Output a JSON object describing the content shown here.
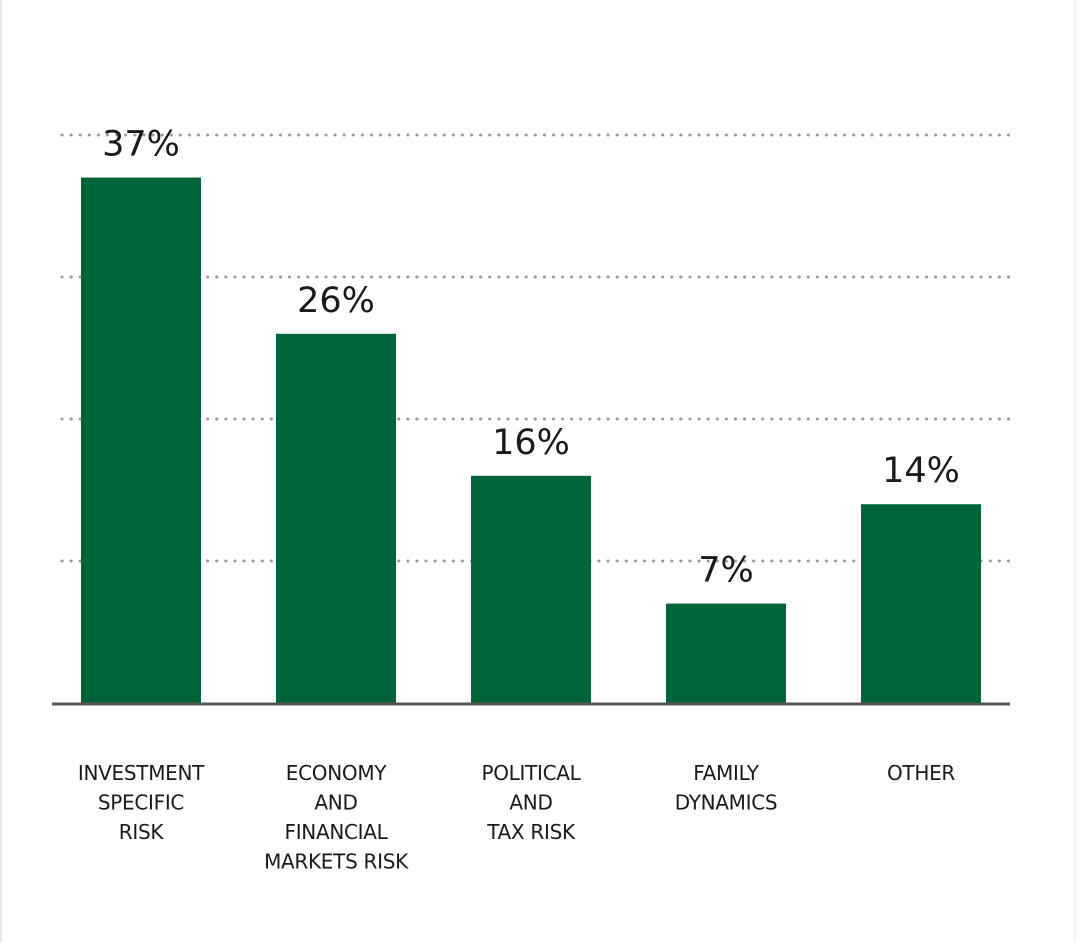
{
  "chart_data": {
    "type": "bar",
    "categories": [
      [
        "INVESTMENT",
        "SPECIFIC",
        "RISK"
      ],
      [
        "ECONOMY",
        "AND",
        "FINANCIAL",
        "MARKETS RISK"
      ],
      [
        "POLITICAL",
        "AND",
        "TAX RISK"
      ],
      [
        "FAMILY",
        "DYNAMICS"
      ],
      [
        "OTHER"
      ]
    ],
    "values": [
      37,
      26,
      16,
      7,
      14
    ],
    "value_labels": [
      "37%",
      "26%",
      "16%",
      "7%",
      "14%"
    ],
    "ylim": [
      0,
      40
    ],
    "gridlines": [
      10,
      20,
      30,
      40
    ],
    "grid": "dotted-horizontal",
    "bar_color": "#00643a",
    "baseline_color": "#555555",
    "grid_color": "#9a9a9a",
    "text_color": "#1a1a1a"
  }
}
